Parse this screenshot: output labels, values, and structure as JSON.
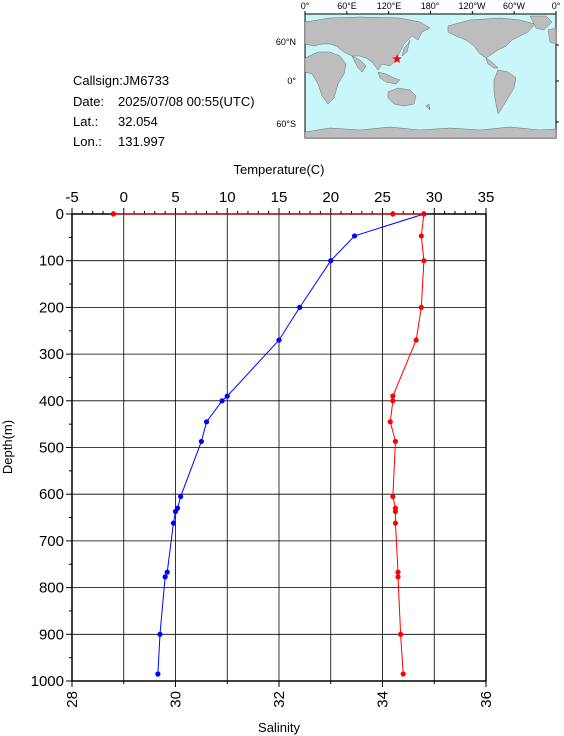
{
  "info": {
    "callsign_label": "Callsign:",
    "callsign": "JM6733",
    "date_label": "Date:",
    "date": "2025/07/08 00:55(UTC)",
    "lat_label": "Lat.:",
    "lat": "32.054",
    "lon_label": "Lon.:",
    "lon": "131.997"
  },
  "map": {
    "top_labels": [
      "0°",
      "60°E",
      "120°E",
      "180°",
      "120°W",
      "60°W",
      "0°"
    ],
    "right_labels": [
      "60°N",
      "0°",
      "60°S"
    ],
    "ocean_color": "#c8f6fa",
    "land_color": "#bdbdbd",
    "marker": {
      "lon": 131.997,
      "lat": 32.054,
      "symbol": "star",
      "color": "#ff0000"
    }
  },
  "chart_data": {
    "type": "line",
    "y_axis": {
      "label": "Depth(m)",
      "range": [
        0,
        1000
      ],
      "inverted": true,
      "ticks": [
        0,
        100,
        200,
        300,
        400,
        500,
        600,
        700,
        800,
        900,
        1000
      ]
    },
    "x_top_axis": {
      "label": "Temperature(C)",
      "range": [
        -5,
        35
      ],
      "ticks": [
        -5,
        0,
        5,
        10,
        15,
        20,
        25,
        30,
        35
      ]
    },
    "x_bottom_axis": {
      "label": "Salinity",
      "range": [
        28,
        36
      ],
      "ticks": [
        28,
        30,
        32,
        34,
        36
      ]
    },
    "grid": true,
    "series": [
      {
        "axis": "top",
        "color": "#0000ff",
        "points": [
          {
            "x": 29.0,
            "depth": 0
          },
          {
            "x": 22.3,
            "depth": 47
          },
          {
            "x": 20.0,
            "depth": 100
          },
          {
            "x": 17.0,
            "depth": 200
          },
          {
            "x": 15.0,
            "depth": 270
          },
          {
            "x": 10.0,
            "depth": 390
          },
          {
            "x": 9.5,
            "depth": 400
          },
          {
            "x": 8.0,
            "depth": 445
          },
          {
            "x": 7.5,
            "depth": 487
          },
          {
            "x": 5.5,
            "depth": 605
          },
          {
            "x": 5.2,
            "depth": 630
          },
          {
            "x": 5.0,
            "depth": 637
          },
          {
            "x": 4.8,
            "depth": 662
          },
          {
            "x": 4.2,
            "depth": 767
          },
          {
            "x": 4.0,
            "depth": 777
          },
          {
            "x": 3.5,
            "depth": 900
          },
          {
            "x": 3.3,
            "depth": 985
          }
        ]
      },
      {
        "axis": "bottom",
        "color": "#ff0000",
        "points": [
          {
            "x": 28.8,
            "depth": 0
          },
          {
            "x": 34.2,
            "depth": 0
          },
          {
            "x": 34.8,
            "depth": 0
          },
          {
            "x": 34.75,
            "depth": 47
          },
          {
            "x": 34.8,
            "depth": 100
          },
          {
            "x": 34.75,
            "depth": 200
          },
          {
            "x": 34.65,
            "depth": 270
          },
          {
            "x": 34.2,
            "depth": 390
          },
          {
            "x": 34.2,
            "depth": 400
          },
          {
            "x": 34.15,
            "depth": 445
          },
          {
            "x": 34.25,
            "depth": 487
          },
          {
            "x": 34.2,
            "depth": 605
          },
          {
            "x": 34.25,
            "depth": 630
          },
          {
            "x": 34.25,
            "depth": 637
          },
          {
            "x": 34.25,
            "depth": 662
          },
          {
            "x": 34.3,
            "depth": 767
          },
          {
            "x": 34.3,
            "depth": 777
          },
          {
            "x": 34.35,
            "depth": 900
          },
          {
            "x": 34.4,
            "depth": 985
          }
        ]
      }
    ]
  }
}
